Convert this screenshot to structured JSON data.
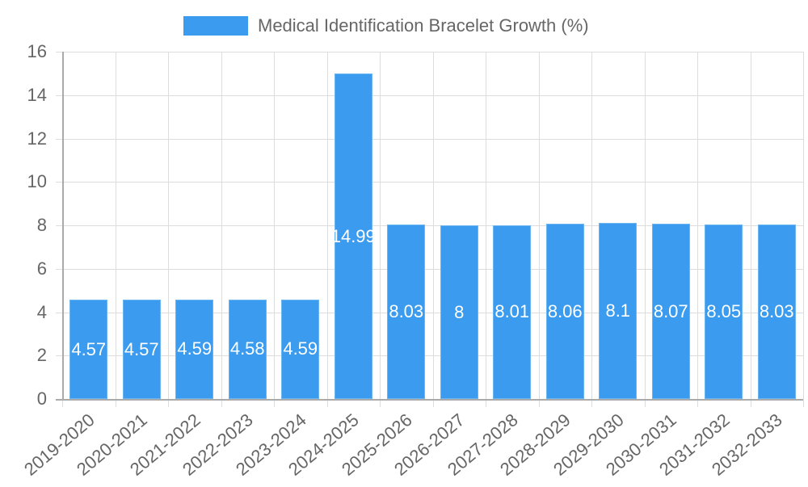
{
  "chart_data": {
    "type": "bar",
    "title": "",
    "xlabel": "",
    "ylabel": "",
    "legend": {
      "position": "top",
      "entries": [
        "Medical Identification Bracelet Growth (%)"
      ]
    },
    "grid": true,
    "ylim": [
      0,
      16
    ],
    "yticks": [
      0,
      2,
      4,
      6,
      8,
      10,
      12,
      14,
      16
    ],
    "categories": [
      "2019-2020",
      "2020-2021",
      "2021-2022",
      "2022-2023",
      "2023-2024",
      "2024-2025",
      "2025-2026",
      "2026-2027",
      "2027-2028",
      "2028-2029",
      "2029-2030",
      "2030-2031",
      "2031-2032",
      "2032-2033"
    ],
    "series": [
      {
        "name": "Medical Identification Bracelet Growth (%)",
        "color": "#3a9bef",
        "values": [
          4.57,
          4.57,
          4.59,
          4.58,
          4.59,
          14.99,
          8.03,
          8,
          8.01,
          8.06,
          8.1,
          8.07,
          8.05,
          8.03
        ],
        "labels": [
          "4.57",
          "4.57",
          "4.59",
          "4.58",
          "4.59",
          "14.99",
          "8.03",
          "8",
          "8.01",
          "8.06",
          "8.1",
          "8.07",
          "8.05",
          "8.03"
        ]
      }
    ]
  },
  "legend": {
    "label": "Medical Identification Bracelet Growth (%)",
    "color": "#3a9bef"
  }
}
